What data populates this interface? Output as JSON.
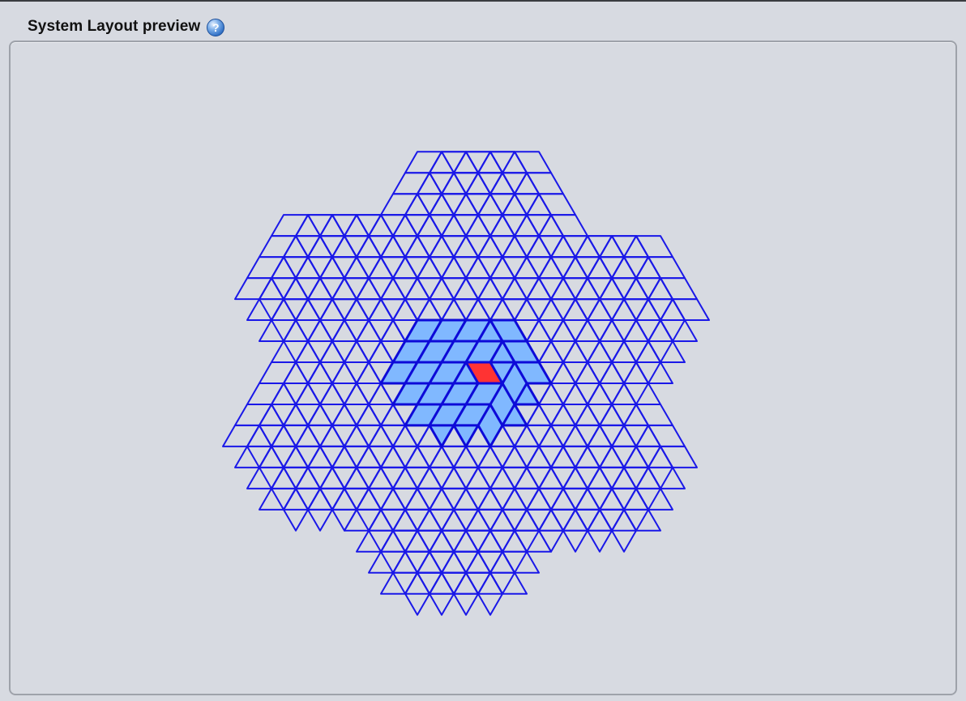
{
  "panel": {
    "title": "System Layout preview",
    "help_icon": "question-mark-icon"
  },
  "layout_preview": {
    "tile_shape": "rhombus",
    "grid_colors": {
      "outline": "#1a18e8",
      "highlight_fill": "#80b8ff",
      "highlight_outline": "#0d0ad8",
      "selected_fill": "#ff3333",
      "background": "#d7dae1"
    },
    "highlighted_region": "central hexagonal cluster",
    "selected_cell": "center"
  }
}
